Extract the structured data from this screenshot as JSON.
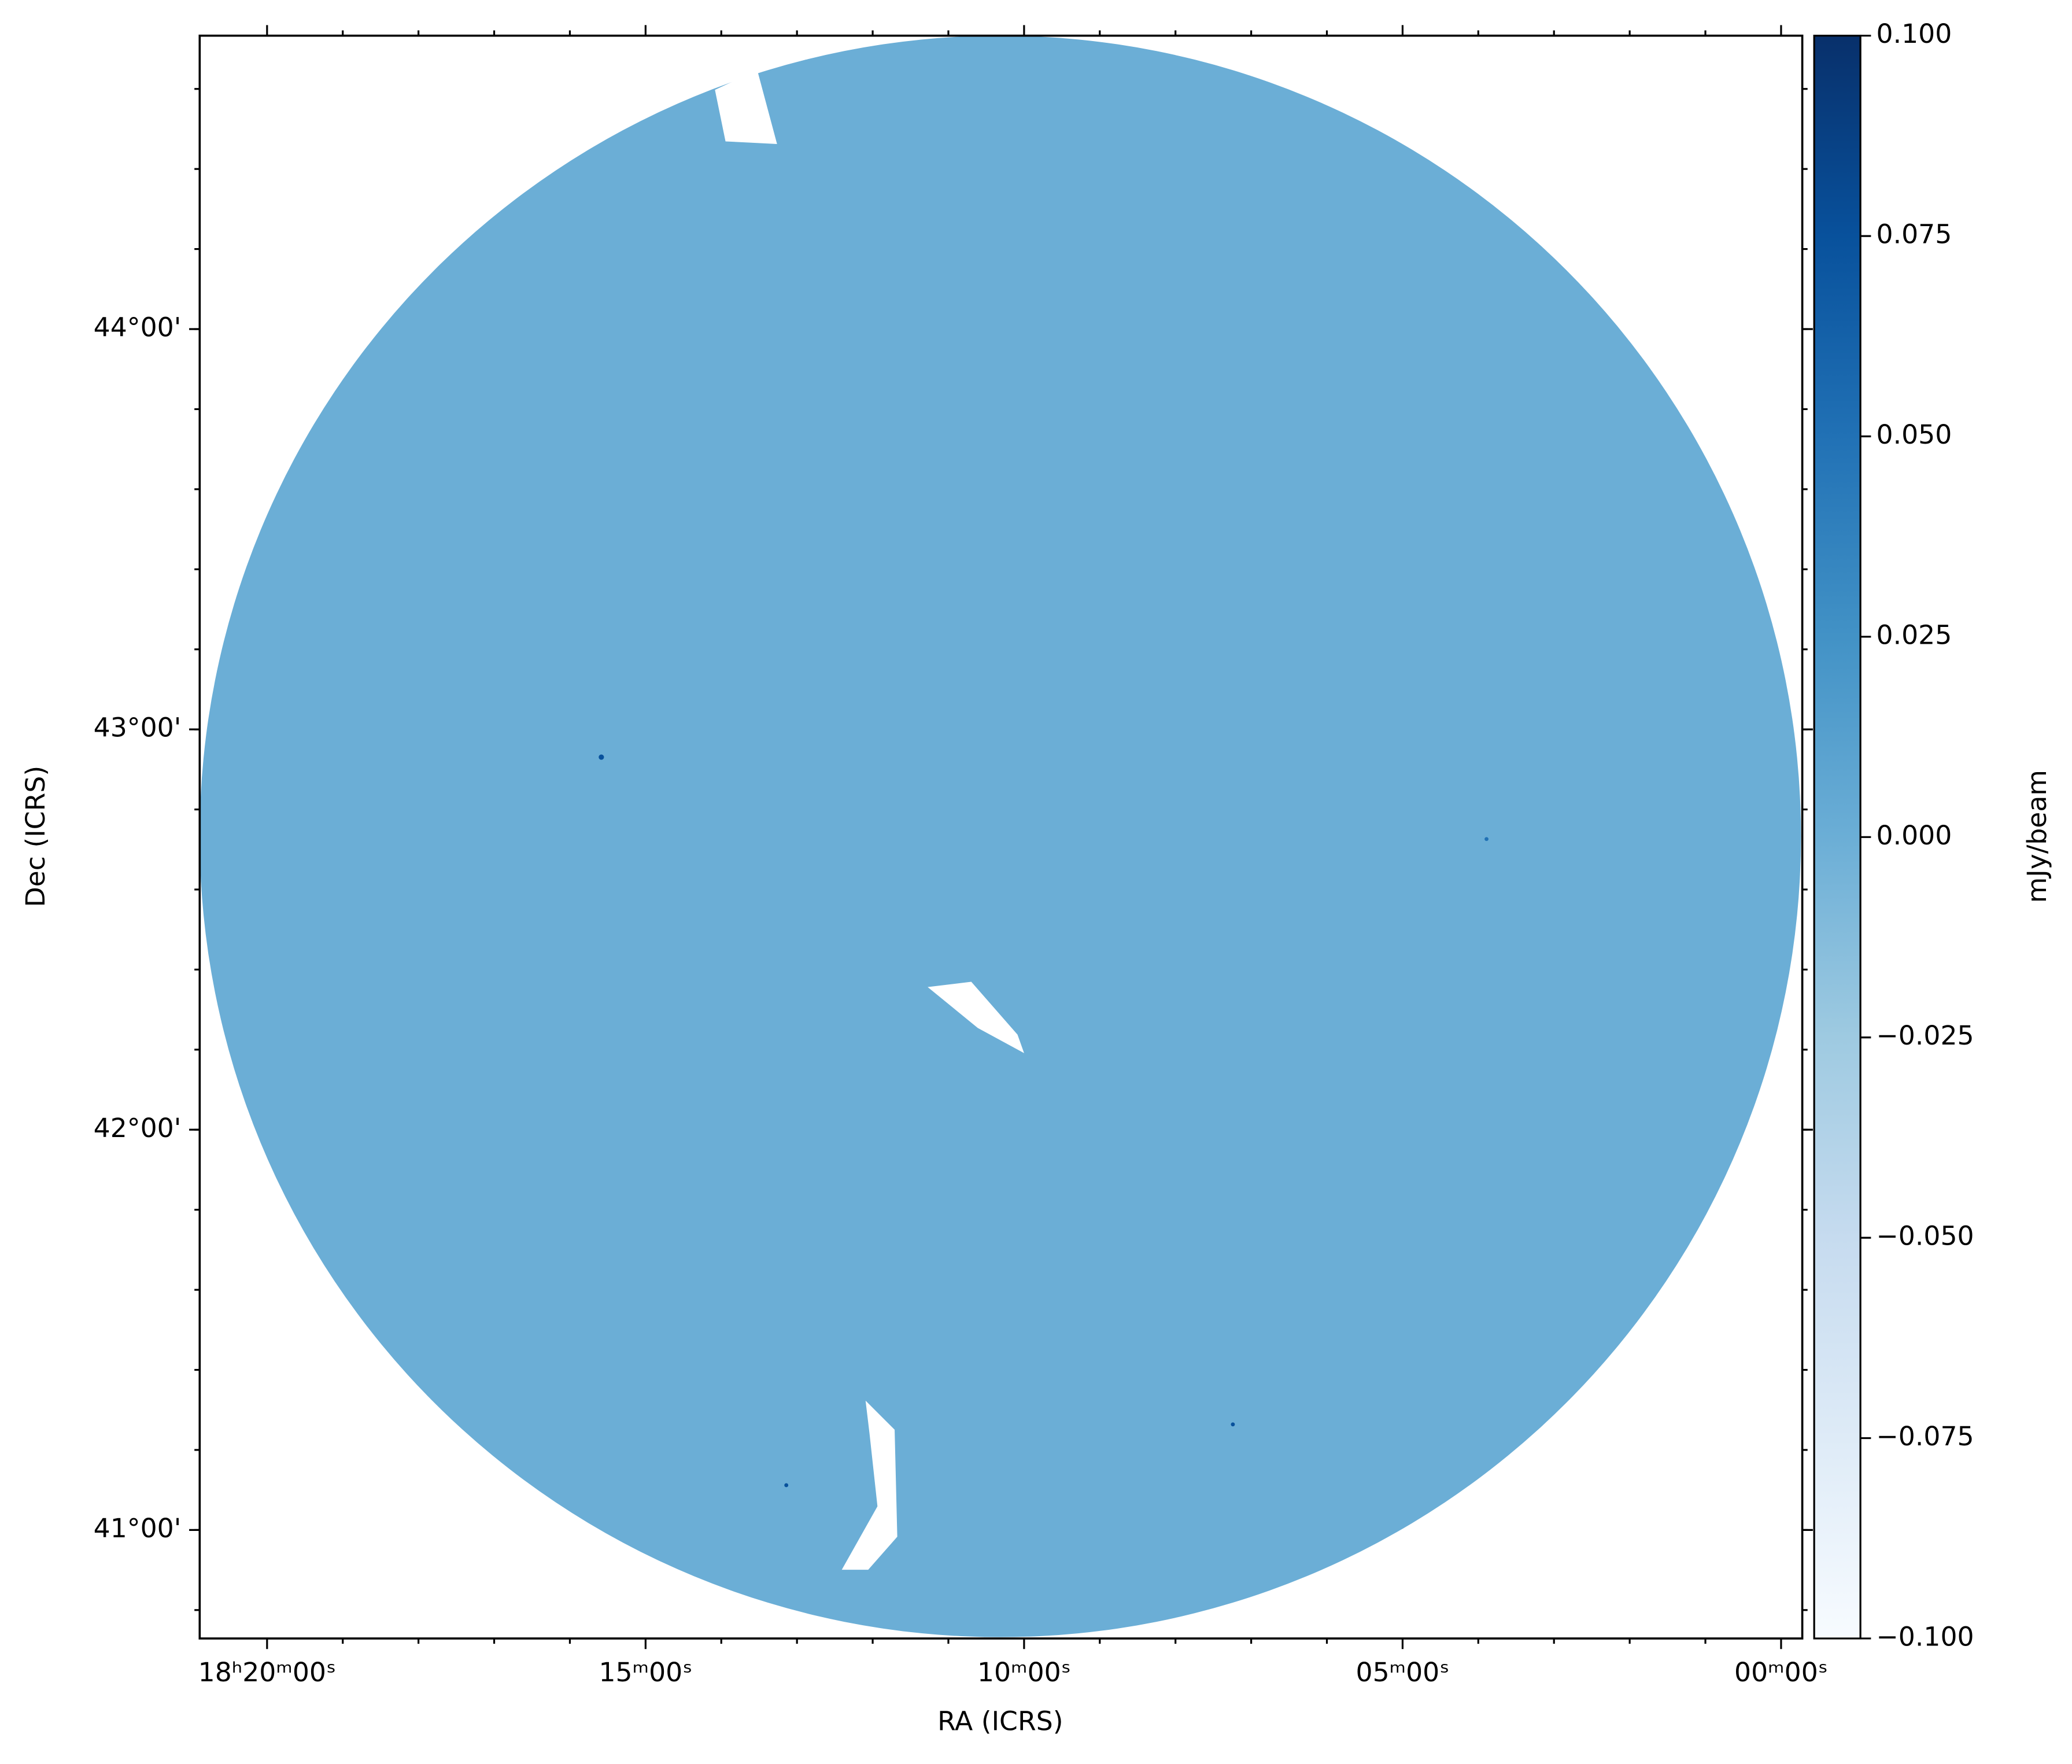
{
  "chart_data": {
    "type": "image",
    "colormap": "Blues",
    "xlabel": "RA (ICRS)",
    "ylabel": "Dec (ICRS)",
    "colorbar_label": "mJy/beam",
    "xlim": [
      275.2225,
      269.93
    ],
    "xticks": [
      {
        "value": 275,
        "label": "18ʰ20ᵐ00ˢ"
      },
      {
        "value": 273.75,
        "label": "15ᵐ00ˢ"
      },
      {
        "value": 272.5,
        "label": "10ᵐ00ˢ"
      },
      {
        "value": 271.25,
        "label": "05ᵐ00ˢ"
      },
      {
        "value": 270,
        "label": "00ᵐ00ˢ"
      }
    ],
    "ylim": [
      40.729,
      44.733
    ],
    "yticks": [
      {
        "value": 41,
        "label": "41°00'"
      },
      {
        "value": 42,
        "label": "42°00'"
      },
      {
        "value": 43,
        "label": "43°00'"
      },
      {
        "value": 44,
        "label": "44°00'"
      }
    ],
    "clim": [
      -0.1,
      0.1
    ],
    "cticks": [
      {
        "value": -0.1,
        "label": "−0.100"
      },
      {
        "value": -0.075,
        "label": "−0.075"
      },
      {
        "value": -0.05,
        "label": "−0.050"
      },
      {
        "value": -0.025,
        "label": "−0.025"
      },
      {
        "value": 0,
        "label": "0.000"
      },
      {
        "value": 0.025,
        "label": "0.025"
      },
      {
        "value": 0.05,
        "label": "0.050"
      },
      {
        "value": 0.075,
        "label": "0.075"
      },
      {
        "value": 0.1,
        "label": "0.100"
      }
    ]
  }
}
